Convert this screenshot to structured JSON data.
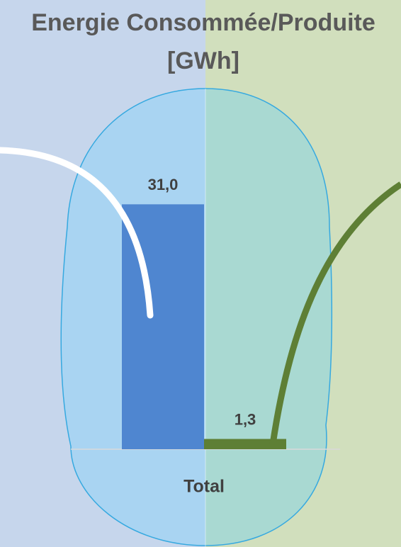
{
  "chart_data": {
    "type": "bar",
    "title": [
      "Energie Consommée/Produite",
      "[GWh]"
    ],
    "categories": [
      "Total"
    ],
    "series": [
      {
        "color": "#4f86d0",
        "values": [
          31.0
        ],
        "value_labels": [
          "31,0"
        ]
      },
      {
        "color": "#5e7f35",
        "values": [
          1.3
        ],
        "value_labels": [
          "1,3"
        ]
      }
    ],
    "ylim": [
      0,
      40
    ]
  }
}
